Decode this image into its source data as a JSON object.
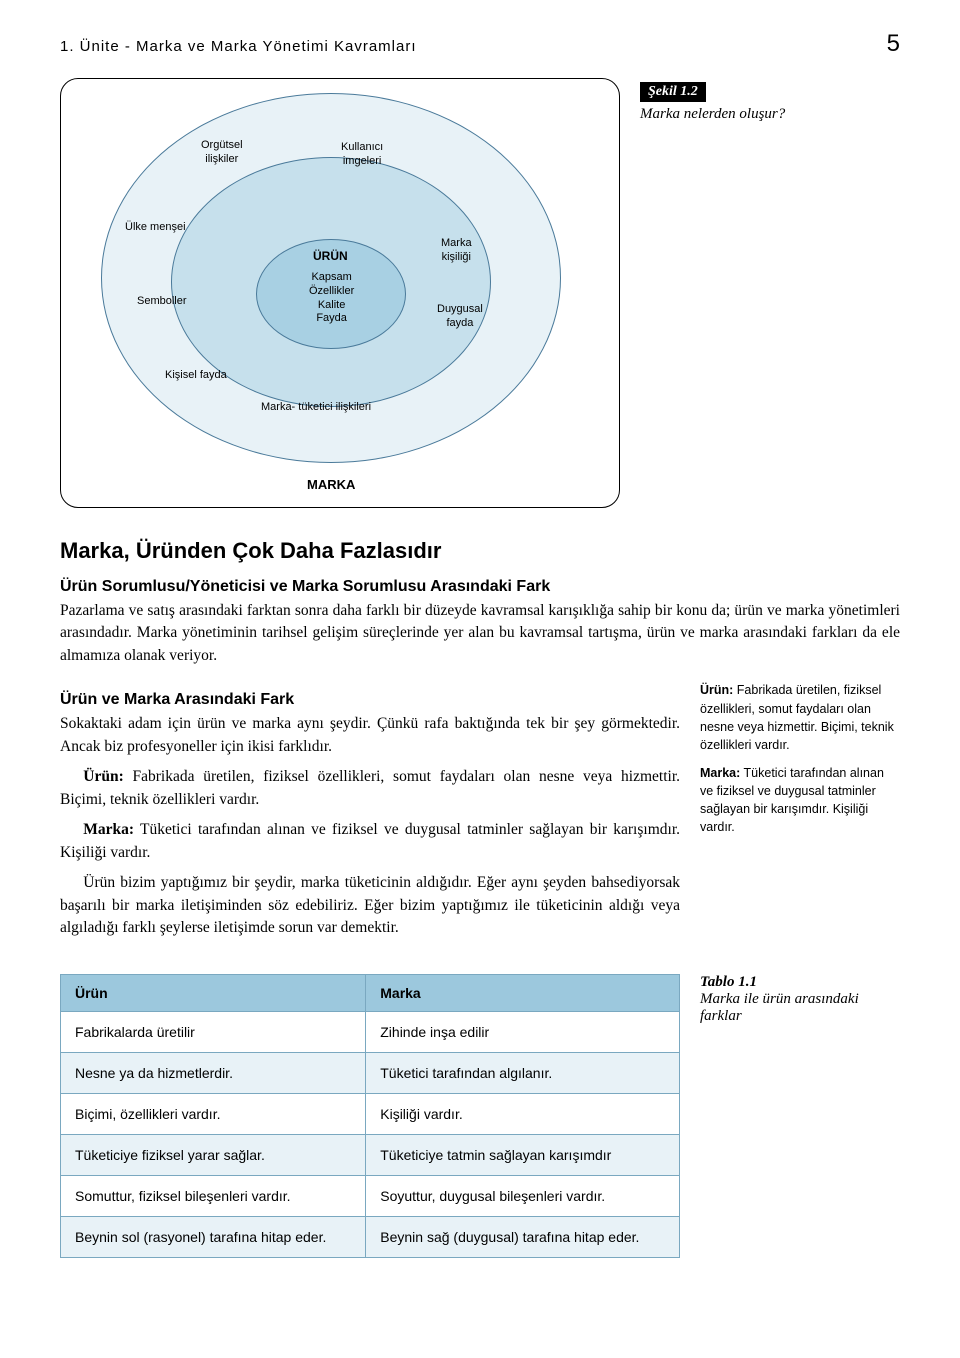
{
  "header": {
    "title": "1. Ünite - Marka ve Marka Yönetimi Kavramları",
    "page_number": "5"
  },
  "figure": {
    "label": "Şekil 1.2",
    "caption": "Marka nelerden oluşur?",
    "colors": {
      "outer_fill": "#e8f2f7",
      "mid_fill": "#c6e0ec",
      "inner_fill": "#a8d0e3",
      "stroke": "#4a7a9a"
    },
    "labels": {
      "outer_top_left": "Orgütsel\nilişkiler",
      "outer_top_right": "Kullanıcı\nimgeleri",
      "outer_left_upper": "Ülke menşei",
      "outer_right_upper": "Marka\nkişiliği",
      "outer_left_mid": "Semboller",
      "outer_right_mid": "Duygusal\nfayda",
      "outer_bottom_left": "Kişisel fayda",
      "outer_bottom_center": "Marka- tüketici ilişkileri",
      "outer_bottom_label": "MARKA",
      "mid_title": "ÜRÜN",
      "inner_lines": "Kapsam\nÖzellikler\nKalite\nFayda"
    }
  },
  "section": {
    "heading": "Marka, Üründen Çok Daha Fazlasıdır",
    "sub1_heading": "Ürün Sorumlusu/Yöneticisi ve Marka Sorumlusu Arasındaki Fark",
    "sub1_body": "Pazarlama ve satış arasındaki farktan sonra daha farklı bir düzeyde kavramsal karışıklığa sahip bir konu da; ürün ve marka yönetimleri arasındadır. Marka yönetiminin tarihsel gelişim süreçlerinde yer alan bu kavramsal tartışma, ürün ve marka arasındaki farkları da ele almamıza olanak veriyor.",
    "sub2_heading": "Ürün ve Marka Arasındaki Fark",
    "sub2_body_p1": "Sokaktaki adam için ürün ve marka aynı şeydir. Çünkü rafa baktığında tek bir şey görmektedir. Ancak biz profesyoneller için ikisi farklıdır.",
    "sub2_body_p2_lead": "Ürün:",
    "sub2_body_p2": " Fabrikada üretilen, fiziksel özellikleri, somut faydaları olan nesne veya hizmettir. Biçimi, teknik özellikleri vardır.",
    "sub2_body_p3_lead": "Marka:",
    "sub2_body_p3": " Tüketici tarafından alınan ve fiziksel ve duygusal tatminler sağlayan bir karışımdır. Kişiliği vardır.",
    "sub2_body_p4": "Ürün bizim yaptığımız bir şeydir, marka tüketicinin aldığıdır. Eğer aynı şeyden bahsediyorsak başarılı bir marka iletişiminden söz edebiliriz. Eğer bizim yaptığımız ile tüketicinin aldığı veya algıladığı farklı şeylerse iletişimde sorun var demektir."
  },
  "sidebar": {
    "urun_term": "Ürün:",
    "urun_def": " Fabrikada üretilen, fiziksel özellikleri, somut faydaları olan nesne veya hizmettir. Biçimi, teknik özellikleri vardır.",
    "marka_term": "Marka:",
    "marka_def": " Tüketici tarafından alınan ve fiziksel ve duygusal tatminler sağlayan bir karışımdır. Kişiliği vardır."
  },
  "table": {
    "label": "Tablo 1.1",
    "caption": "Marka ile ürün arasındaki farklar",
    "header_bg": "#9cc8dd",
    "row_alt_bg": "#e8f2f7",
    "border_color": "#7aa8c0",
    "columns": [
      "Ürün",
      "Marka"
    ],
    "rows": [
      [
        "Fabrikalarda üretilir",
        "Zihinde inşa edilir"
      ],
      [
        "Nesne ya da hizmetlerdir.",
        "Tüketici tarafından algılanır."
      ],
      [
        "Biçimi, özellikleri vardır.",
        "Kişiliği vardır."
      ],
      [
        "Tüketiciye fiziksel yarar sağlar.",
        "Tüketiciye tatmin sağlayan karışımdır"
      ],
      [
        "Somuttur, fiziksel bileşenleri vardır.",
        "Soyuttur, duygusal bileşenleri vardır."
      ],
      [
        "Beynin sol (rasyonel) tarafına hitap eder.",
        "Beynin sağ (duygusal) tarafına hitap eder."
      ]
    ]
  }
}
